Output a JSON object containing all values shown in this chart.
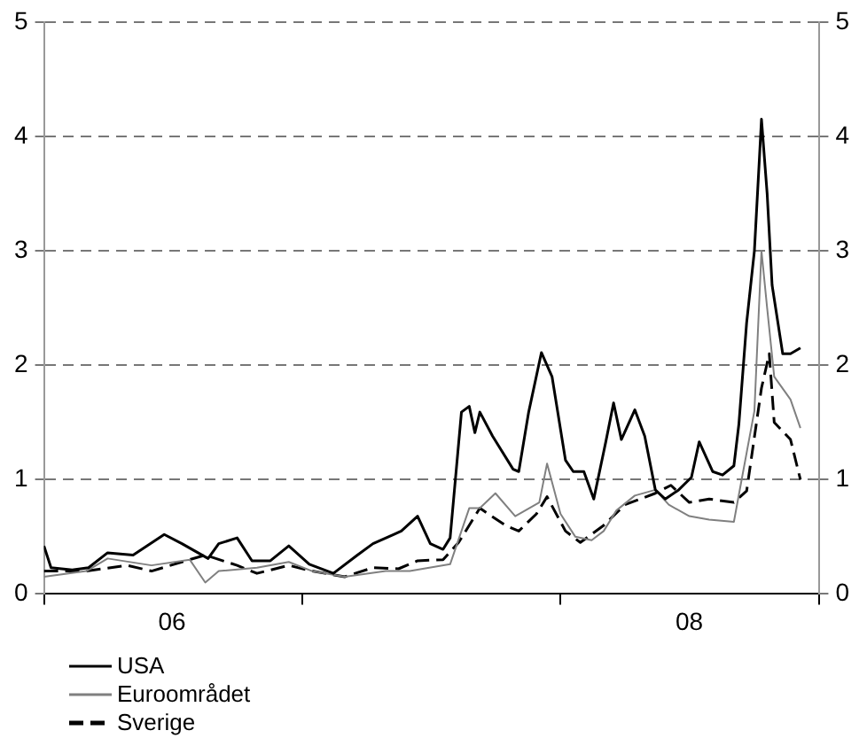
{
  "chart_data": {
    "type": "line",
    "xlim": [
      "2006-01-01",
      "2009-01-01"
    ],
    "xticks": [
      {
        "value": "2006-01-01",
        "label": null
      },
      {
        "value": "2006-07-01",
        "label": "06"
      },
      {
        "value": "2007-01-01",
        "label": null
      },
      {
        "value": "2008-01-01",
        "label": null
      },
      {
        "value": "2008-07-01",
        "label": "08"
      },
      {
        "value": "2009-01-01",
        "label": null
      }
    ],
    "ylim": [
      0,
      5
    ],
    "yticks": [
      0,
      1,
      2,
      3,
      4,
      5
    ],
    "y2lim": [
      0,
      5
    ],
    "y2ticks": [
      0,
      1,
      2,
      3,
      4,
      5
    ],
    "grid": "y",
    "legend": "bottom left",
    "marker": "none",
    "series": [
      {
        "name": "USA",
        "color": "#000000",
        "line_style": "solid",
        "x": [
          "2006-01-01",
          "2006-01-11",
          "2006-02-10",
          "2006-03-05",
          "2006-04-01",
          "2006-05-07",
          "2006-06-20",
          "2006-07-15",
          "2006-08-21",
          "2006-09-05",
          "2006-10-01",
          "2006-10-22",
          "2006-11-17",
          "2006-12-13",
          "2007-01-11",
          "2007-02-14",
          "2007-03-20",
          "2007-04-11",
          "2007-05-10",
          "2007-05-21",
          "2007-06-13",
          "2007-07-01",
          "2007-07-19",
          "2007-07-29",
          "2007-08-14",
          "2007-08-25",
          "2007-09-02",
          "2007-09-09",
          "2007-09-27",
          "2007-10-26",
          "2007-11-03",
          "2007-11-17",
          "2007-12-05",
          "2007-12-20",
          "2008-01-08",
          "2008-01-19",
          "2008-02-03",
          "2008-02-17",
          "2008-03-05",
          "2008-03-16",
          "2008-03-27",
          "2008-04-15",
          "2008-04-29",
          "2008-05-14",
          "2008-05-28",
          "2008-06-16",
          "2008-07-04",
          "2008-07-15",
          "2008-08-03",
          "2008-08-17",
          "2008-09-02",
          "2008-09-09",
          "2008-09-20",
          "2008-10-01",
          "2008-10-08",
          "2008-10-11",
          "2008-10-19",
          "2008-10-26",
          "2008-11-10",
          "2008-11-21",
          "2008-12-05"
        ],
        "values": [
          0.42,
          0.23,
          0.21,
          0.23,
          0.36,
          0.34,
          0.52,
          0.44,
          0.31,
          0.44,
          0.49,
          0.29,
          0.29,
          0.42,
          0.26,
          0.18,
          0.34,
          0.44,
          0.52,
          0.55,
          0.68,
          0.44,
          0.39,
          0.49,
          1.59,
          1.64,
          1.41,
          1.59,
          1.38,
          1.09,
          1.07,
          1.59,
          2.11,
          1.9,
          1.17,
          1.07,
          1.07,
          0.83,
          1.33,
          1.67,
          1.35,
          1.61,
          1.38,
          0.91,
          0.83,
          0.91,
          1.02,
          1.33,
          1.07,
          1.04,
          1.12,
          1.48,
          2.37,
          3.0,
          3.8,
          4.15,
          3.5,
          2.7,
          2.1,
          2.1,
          2.15
        ]
      },
      {
        "name": "Euroområdet",
        "color": "#808080",
        "line_style": "solid",
        "x": [
          "2006-01-01",
          "2006-03-02",
          "2006-04-01",
          "2006-06-02",
          "2006-07-26",
          "2006-08-17",
          "2006-09-05",
          "2006-10-29",
          "2006-12-13",
          "2007-01-15",
          "2007-03-02",
          "2007-04-29",
          "2007-06-02",
          "2007-07-29",
          "2007-08-25",
          "2007-09-09",
          "2007-10-01",
          "2007-10-29",
          "2007-12-02",
          "2007-12-13",
          "2008-01-01",
          "2008-01-22",
          "2008-02-14",
          "2008-03-02",
          "2008-03-20",
          "2008-04-15",
          "2008-05-14",
          "2008-06-02",
          "2008-07-01",
          "2008-07-29",
          "2008-09-02",
          "2008-09-13",
          "2008-10-01",
          "2008-10-11",
          "2008-10-19",
          "2008-10-29",
          "2008-11-21",
          "2008-12-05"
        ],
        "values": [
          0.15,
          0.2,
          0.31,
          0.25,
          0.3,
          0.1,
          0.2,
          0.23,
          0.28,
          0.2,
          0.15,
          0.2,
          0.2,
          0.26,
          0.75,
          0.75,
          0.88,
          0.68,
          0.8,
          1.14,
          0.7,
          0.5,
          0.47,
          0.55,
          0.73,
          0.86,
          0.91,
          0.78,
          0.68,
          0.65,
          0.63,
          1.0,
          1.6,
          3.0,
          2.5,
          1.9,
          1.7,
          1.45
        ]
      },
      {
        "name": "Sverige",
        "color": "#000000",
        "line_style": "dashed",
        "x": [
          "2006-01-01",
          "2006-03-02",
          "2006-04-29",
          "2006-06-02",
          "2006-07-15",
          "2006-08-17",
          "2006-10-01",
          "2006-10-29",
          "2006-12-13",
          "2007-01-15",
          "2007-03-02",
          "2007-04-11",
          "2007-05-17",
          "2007-06-13",
          "2007-07-19",
          "2007-08-10",
          "2007-09-09",
          "2007-10-15",
          "2007-11-03",
          "2007-11-28",
          "2007-12-13",
          "2008-01-08",
          "2008-01-29",
          "2008-03-02",
          "2008-04-01",
          "2008-05-14",
          "2008-06-05",
          "2008-07-01",
          "2008-07-29",
          "2008-09-02",
          "2008-09-20",
          "2008-10-11",
          "2008-10-22",
          "2008-10-29",
          "2008-11-21",
          "2008-12-05"
        ],
        "values": [
          0.2,
          0.2,
          0.25,
          0.2,
          0.28,
          0.34,
          0.25,
          0.18,
          0.25,
          0.2,
          0.15,
          0.23,
          0.22,
          0.29,
          0.3,
          0.45,
          0.75,
          0.6,
          0.55,
          0.7,
          0.85,
          0.55,
          0.45,
          0.6,
          0.78,
          0.88,
          0.95,
          0.8,
          0.83,
          0.8,
          0.9,
          1.8,
          2.1,
          1.5,
          1.35,
          1.0
        ]
      }
    ]
  }
}
